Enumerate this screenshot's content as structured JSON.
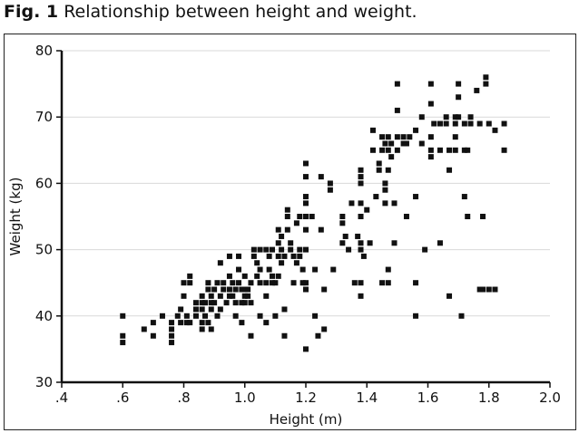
{
  "caption": {
    "label": "Fig. 1",
    "text": "Relationship between height and weight."
  },
  "chart_data": {
    "type": "scatter",
    "xlabel": "Height (m)",
    "ylabel": "Weight (kg)",
    "xlim": [
      0.4,
      2.0
    ],
    "ylim": [
      30,
      80
    ],
    "xticks": [
      ".4",
      ".6",
      ".8",
      "1.0",
      "1.2",
      "1.4",
      "1.6",
      "1.8",
      "2.0"
    ],
    "xtick_values": [
      0.4,
      0.6,
      0.8,
      1.0,
      1.2,
      1.4,
      1.6,
      1.8,
      2.0
    ],
    "yticks": [
      "30",
      "40",
      "50",
      "60",
      "70",
      "80"
    ],
    "ytick_values": [
      30,
      40,
      50,
      60,
      70,
      80
    ],
    "grid": true,
    "marker_color": "#111111",
    "points": [
      [
        0.6,
        40
      ],
      [
        0.6,
        37
      ],
      [
        0.6,
        36
      ],
      [
        0.67,
        38
      ],
      [
        0.7,
        39
      ],
      [
        0.7,
        37
      ],
      [
        0.73,
        40
      ],
      [
        0.76,
        39
      ],
      [
        0.76,
        38
      ],
      [
        0.76,
        37
      ],
      [
        0.76,
        36
      ],
      [
        0.78,
        40
      ],
      [
        0.79,
        39
      ],
      [
        0.79,
        41
      ],
      [
        0.8,
        43
      ],
      [
        0.8,
        45
      ],
      [
        0.81,
        40
      ],
      [
        0.81,
        39
      ],
      [
        0.82,
        46
      ],
      [
        0.82,
        45
      ],
      [
        0.82,
        39
      ],
      [
        0.84,
        40
      ],
      [
        0.84,
        41
      ],
      [
        0.84,
        42
      ],
      [
        0.86,
        41
      ],
      [
        0.86,
        42
      ],
      [
        0.86,
        43
      ],
      [
        0.86,
        39
      ],
      [
        0.86,
        38
      ],
      [
        0.87,
        42
      ],
      [
        0.87,
        40
      ],
      [
        0.88,
        45
      ],
      [
        0.88,
        44
      ],
      [
        0.88,
        39
      ],
      [
        0.89,
        43
      ],
      [
        0.89,
        42
      ],
      [
        0.89,
        41
      ],
      [
        0.89,
        38
      ],
      [
        0.9,
        42
      ],
      [
        0.9,
        44
      ],
      [
        0.91,
        45
      ],
      [
        0.91,
        40
      ],
      [
        0.92,
        48
      ],
      [
        0.92,
        43
      ],
      [
        0.92,
        41
      ],
      [
        0.93,
        45
      ],
      [
        0.93,
        44
      ],
      [
        0.94,
        42
      ],
      [
        0.95,
        46
      ],
      [
        0.95,
        43
      ],
      [
        0.95,
        44
      ],
      [
        0.95,
        49
      ],
      [
        0.96,
        45
      ],
      [
        0.96,
        43
      ],
      [
        0.97,
        44
      ],
      [
        0.97,
        42
      ],
      [
        0.97,
        40
      ],
      [
        0.98,
        45
      ],
      [
        0.98,
        49
      ],
      [
        0.98,
        47
      ],
      [
        0.99,
        44
      ],
      [
        0.99,
        42
      ],
      [
        0.99,
        39
      ],
      [
        1.0,
        46
      ],
      [
        1.0,
        44
      ],
      [
        1.0,
        43
      ],
      [
        1.0,
        42
      ],
      [
        1.01,
        44
      ],
      [
        1.01,
        43
      ],
      [
        1.02,
        45
      ],
      [
        1.02,
        42
      ],
      [
        1.02,
        37
      ],
      [
        1.03,
        50
      ],
      [
        1.03,
        49
      ],
      [
        1.04,
        48
      ],
      [
        1.04,
        46
      ],
      [
        1.05,
        50
      ],
      [
        1.05,
        47
      ],
      [
        1.05,
        45
      ],
      [
        1.05,
        40
      ],
      [
        1.07,
        50
      ],
      [
        1.07,
        45
      ],
      [
        1.07,
        43
      ],
      [
        1.07,
        39
      ],
      [
        1.08,
        49
      ],
      [
        1.08,
        47
      ],
      [
        1.09,
        50
      ],
      [
        1.09,
        46
      ],
      [
        1.09,
        45
      ],
      [
        1.1,
        45
      ],
      [
        1.1,
        40
      ],
      [
        1.11,
        53
      ],
      [
        1.11,
        51
      ],
      [
        1.11,
        49
      ],
      [
        1.11,
        46
      ],
      [
        1.12,
        52
      ],
      [
        1.12,
        50
      ],
      [
        1.12,
        48
      ],
      [
        1.13,
        49
      ],
      [
        1.13,
        41
      ],
      [
        1.13,
        37
      ],
      [
        1.14,
        56
      ],
      [
        1.14,
        55
      ],
      [
        1.14,
        53
      ],
      [
        1.15,
        51
      ],
      [
        1.15,
        50
      ],
      [
        1.16,
        45
      ],
      [
        1.16,
        49
      ],
      [
        1.17,
        48
      ],
      [
        1.17,
        54
      ],
      [
        1.18,
        55
      ],
      [
        1.18,
        50
      ],
      [
        1.18,
        49
      ],
      [
        1.19,
        47
      ],
      [
        1.19,
        45
      ],
      [
        1.2,
        63
      ],
      [
        1.2,
        61
      ],
      [
        1.2,
        58
      ],
      [
        1.2,
        57
      ],
      [
        1.2,
        55
      ],
      [
        1.2,
        53
      ],
      [
        1.2,
        50
      ],
      [
        1.2,
        45
      ],
      [
        1.2,
        44
      ],
      [
        1.2,
        35
      ],
      [
        1.22,
        55
      ],
      [
        1.23,
        47
      ],
      [
        1.23,
        40
      ],
      [
        1.24,
        37
      ],
      [
        1.25,
        61
      ],
      [
        1.25,
        53
      ],
      [
        1.26,
        44
      ],
      [
        1.26,
        38
      ],
      [
        1.28,
        60
      ],
      [
        1.28,
        59
      ],
      [
        1.29,
        47
      ],
      [
        1.32,
        55
      ],
      [
        1.32,
        54
      ],
      [
        1.32,
        51
      ],
      [
        1.33,
        52
      ],
      [
        1.34,
        50
      ],
      [
        1.35,
        57
      ],
      [
        1.36,
        45
      ],
      [
        1.37,
        52
      ],
      [
        1.38,
        62
      ],
      [
        1.38,
        61
      ],
      [
        1.38,
        60
      ],
      [
        1.38,
        57
      ],
      [
        1.38,
        55
      ],
      [
        1.38,
        51
      ],
      [
        1.38,
        50
      ],
      [
        1.38,
        45
      ],
      [
        1.38,
        43
      ],
      [
        1.39,
        49
      ],
      [
        1.4,
        56
      ],
      [
        1.41,
        51
      ],
      [
        1.42,
        68
      ],
      [
        1.42,
        65
      ],
      [
        1.43,
        58
      ],
      [
        1.44,
        63
      ],
      [
        1.44,
        62
      ],
      [
        1.45,
        67
      ],
      [
        1.45,
        65
      ],
      [
        1.45,
        45
      ],
      [
        1.46,
        66
      ],
      [
        1.46,
        60
      ],
      [
        1.46,
        59
      ],
      [
        1.46,
        57
      ],
      [
        1.47,
        67
      ],
      [
        1.47,
        65
      ],
      [
        1.47,
        62
      ],
      [
        1.47,
        47
      ],
      [
        1.47,
        45
      ],
      [
        1.48,
        66
      ],
      [
        1.48,
        64
      ],
      [
        1.49,
        57
      ],
      [
        1.49,
        51
      ],
      [
        1.5,
        75
      ],
      [
        1.5,
        71
      ],
      [
        1.5,
        67
      ],
      [
        1.5,
        65
      ],
      [
        1.52,
        67
      ],
      [
        1.52,
        66
      ],
      [
        1.53,
        66
      ],
      [
        1.53,
        55
      ],
      [
        1.54,
        67
      ],
      [
        1.56,
        68
      ],
      [
        1.56,
        58
      ],
      [
        1.56,
        45
      ],
      [
        1.56,
        40
      ],
      [
        1.58,
        70
      ],
      [
        1.58,
        66
      ],
      [
        1.59,
        50
      ],
      [
        1.61,
        72
      ],
      [
        1.61,
        67
      ],
      [
        1.61,
        65
      ],
      [
        1.61,
        64
      ],
      [
        1.61,
        75
      ],
      [
        1.62,
        69
      ],
      [
        1.64,
        51
      ],
      [
        1.64,
        69
      ],
      [
        1.64,
        65
      ],
      [
        1.66,
        70
      ],
      [
        1.66,
        69
      ],
      [
        1.67,
        65
      ],
      [
        1.67,
        62
      ],
      [
        1.67,
        43
      ],
      [
        1.69,
        70
      ],
      [
        1.69,
        69
      ],
      [
        1.69,
        67
      ],
      [
        1.69,
        65
      ],
      [
        1.7,
        75
      ],
      [
        1.7,
        73
      ],
      [
        1.7,
        70
      ],
      [
        1.71,
        40
      ],
      [
        1.72,
        69
      ],
      [
        1.72,
        65
      ],
      [
        1.72,
        58
      ],
      [
        1.73,
        65
      ],
      [
        1.73,
        55
      ],
      [
        1.74,
        70
      ],
      [
        1.74,
        69
      ],
      [
        1.76,
        74
      ],
      [
        1.77,
        69
      ],
      [
        1.77,
        44
      ],
      [
        1.78,
        44
      ],
      [
        1.78,
        55
      ],
      [
        1.79,
        75
      ],
      [
        1.79,
        76
      ],
      [
        1.8,
        69
      ],
      [
        1.8,
        44
      ],
      [
        1.82,
        68
      ],
      [
        1.82,
        44
      ],
      [
        1.85,
        69
      ],
      [
        1.85,
        65
      ]
    ]
  }
}
